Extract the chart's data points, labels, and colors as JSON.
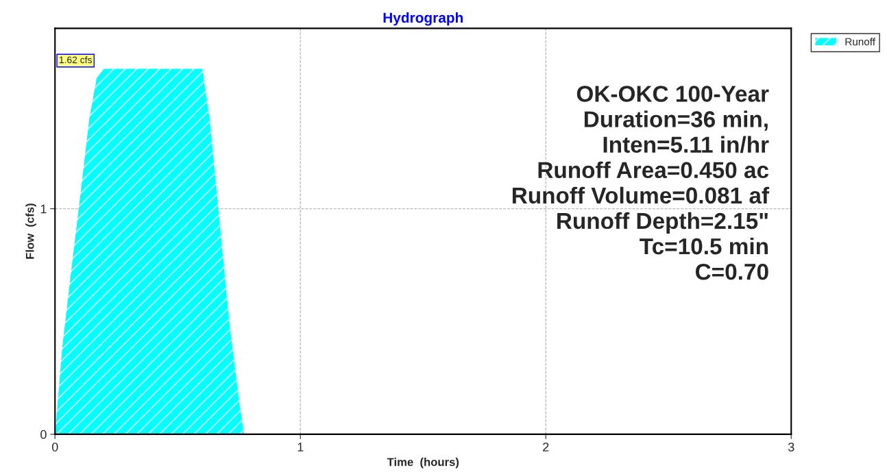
{
  "chart_data": {
    "type": "area",
    "title": "Hydrograph",
    "xlabel": "Time  (hours)",
    "ylabel": "Flow  (cfs)",
    "x": [
      0,
      0.03,
      0.07,
      0.1,
      0.14,
      0.17,
      0.2,
      0.6,
      0.63,
      0.67,
      0.71,
      0.75,
      0.77,
      3.0
    ],
    "series": [
      {
        "name": "Runoff",
        "color": "#00ffff",
        "values": [
          0,
          0.39,
          0.76,
          1.03,
          1.4,
          1.58,
          1.62,
          1.62,
          1.4,
          0.95,
          0.5,
          0.15,
          0,
          0
        ]
      }
    ],
    "xlim": [
      0,
      3
    ],
    "ylim": [
      0,
      1.8
    ],
    "xticks": [
      0,
      1,
      2,
      3
    ],
    "yticks": [
      0,
      1
    ],
    "grid": true,
    "legend": "top right",
    "annotations": [
      {
        "text": "1.62 cfs",
        "x": 0.2,
        "y": 1.62
      },
      "OK-OKC 100-Year\nDuration=36 min,\nInten=5.11 in/hr\nRunoff Area=0.450 ac\nRunoff Volume=0.081 af\nRunoff Depth=2.15\"\nTc=10.5 min\nC=0.70"
    ]
  }
}
